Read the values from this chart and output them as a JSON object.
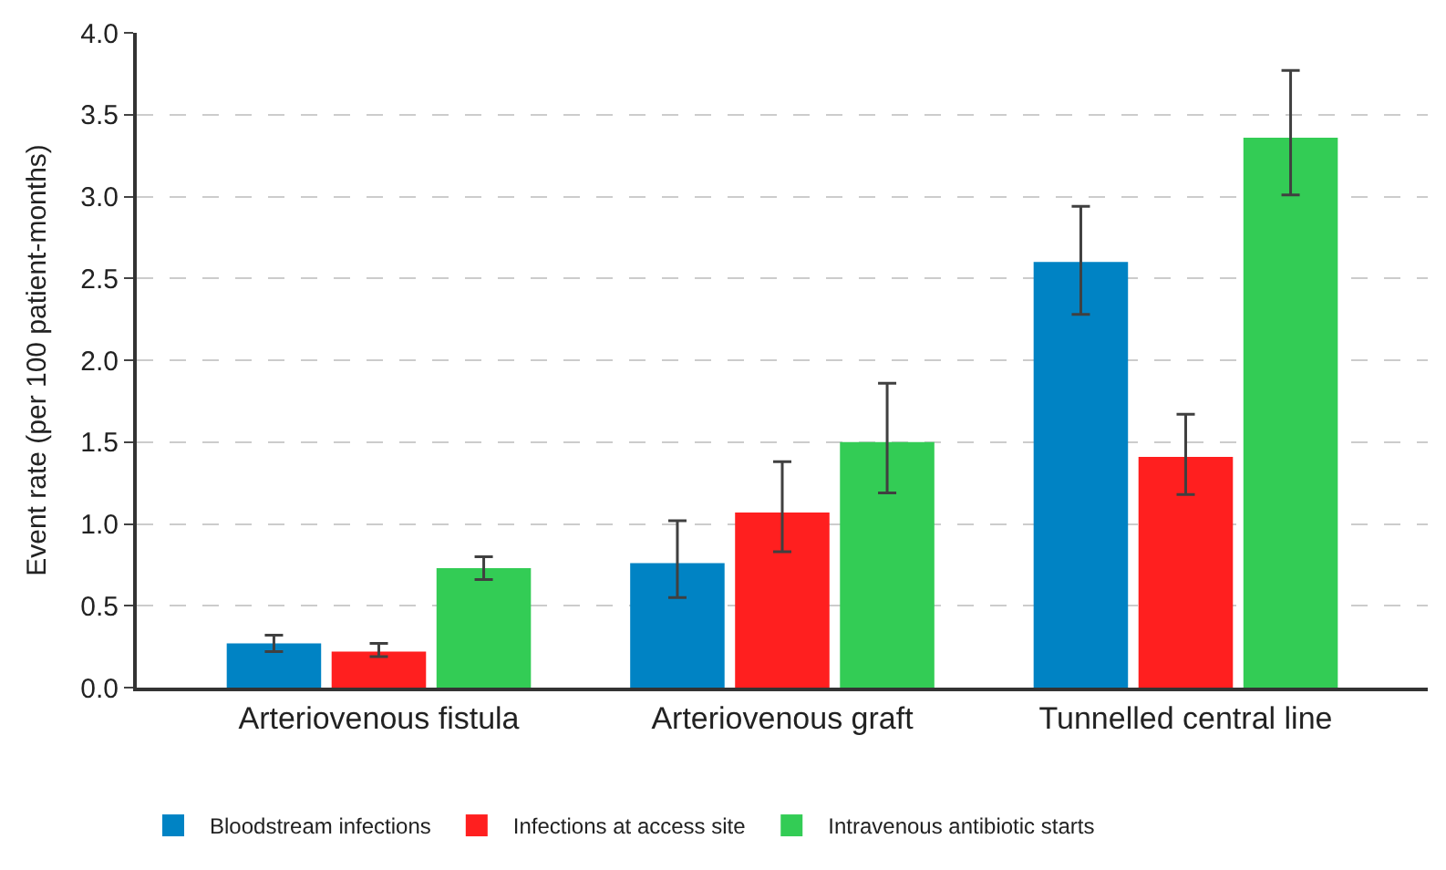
{
  "chart_data": {
    "type": "bar",
    "ylabel": "Event rate (per 100 patient-months)",
    "categories": [
      "Arteriovenous fistula",
      "Arteriovenous graft",
      "Tunnelled central line"
    ],
    "series": [
      {
        "name": "Bloodstream infections",
        "color": "#0083c4",
        "values": [
          0.27,
          0.76,
          2.6
        ],
        "errors": [
          [
            0.22,
            0.32
          ],
          [
            0.55,
            1.02
          ],
          [
            2.28,
            2.94
          ]
        ]
      },
      {
        "name": "Infections at access site",
        "color": "#ff1f1f",
        "values": [
          0.22,
          1.07,
          1.41
        ],
        "errors": [
          [
            0.19,
            0.27
          ],
          [
            0.83,
            1.38
          ],
          [
            1.18,
            1.67
          ]
        ]
      },
      {
        "name": "Intravenous antibiotic starts",
        "color": "#33cc55",
        "values": [
          0.73,
          1.5,
          3.36
        ],
        "errors": [
          [
            0.66,
            0.8
          ],
          [
            1.19,
            1.86
          ],
          [
            3.01,
            3.77
          ]
        ]
      }
    ],
    "ylim": [
      0,
      4.0
    ],
    "yticks": [
      {
        "value": 0,
        "label": "0.0"
      },
      {
        "value": 0.5,
        "label": "0.5"
      },
      {
        "value": 1,
        "label": "1.0"
      },
      {
        "value": 1.5,
        "label": "1.5"
      },
      {
        "value": 2,
        "label": "2.0"
      },
      {
        "value": 2.5,
        "label": "2.5"
      },
      {
        "value": 3,
        "label": "3.0"
      },
      {
        "value": 3.5,
        "label": "3.5"
      },
      {
        "value": 4,
        "label": "4.0"
      }
    ],
    "grid": "y",
    "legend": "bottom"
  }
}
